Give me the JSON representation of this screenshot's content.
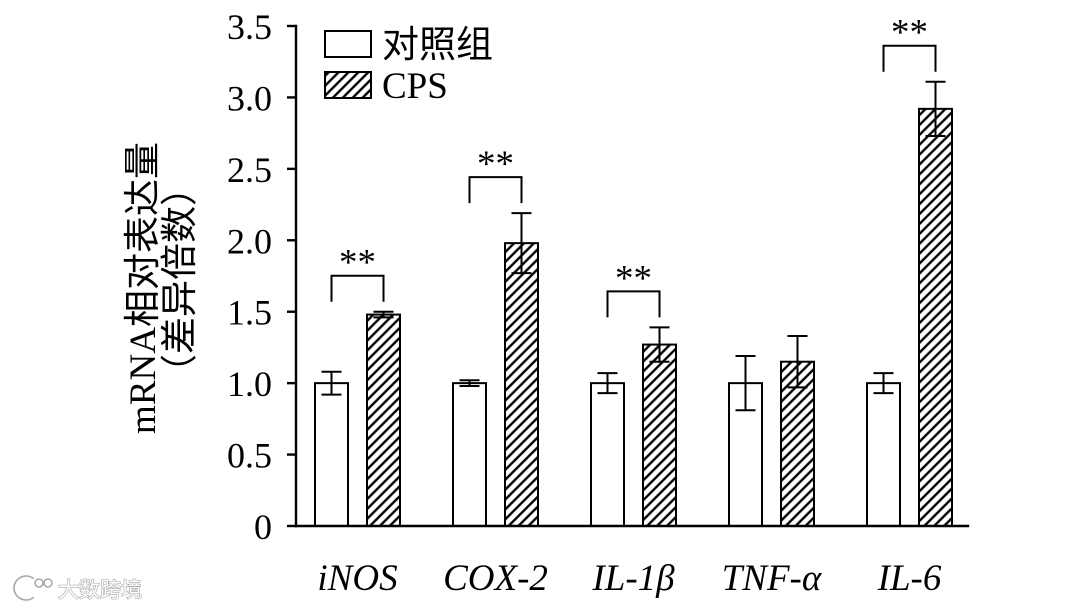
{
  "chart_data": {
    "type": "bar",
    "categories": [
      "iNOS",
      "COX-2",
      "IL-1β",
      "TNF-α",
      "IL-6"
    ],
    "series": [
      {
        "name": "对照组",
        "values": [
          1.0,
          1.0,
          1.0,
          1.0,
          1.0
        ],
        "error": [
          0.08,
          0.02,
          0.07,
          0.19,
          0.07
        ],
        "fill": "#ffffff"
      },
      {
        "name": "CPS",
        "values": [
          1.48,
          1.98,
          1.27,
          1.15,
          2.92
        ],
        "error": [
          0.02,
          0.21,
          0.12,
          0.18,
          0.19
        ],
        "fill": "#ffffff",
        "hatch": "#000000"
      }
    ],
    "significance": [
      "**",
      "**",
      "**",
      "",
      "**"
    ],
    "ylabel_lines": [
      "mRNA相对表达量",
      "（差异倍数）"
    ],
    "ylim": [
      0,
      3.5
    ],
    "yticks": [
      0,
      0.5,
      1.0,
      1.5,
      2.0,
      2.5,
      3.0,
      3.5
    ],
    "ytick_labels": [
      "0",
      "0.5",
      "1.0",
      "1.5",
      "2.0",
      "2.5",
      "3.0",
      "3.5"
    ],
    "grid": false,
    "legend_position": "top-left",
    "colors": {
      "axis": "#000000",
      "bar_edge": "#000000",
      "background": "#ffffff"
    }
  },
  "watermark": {
    "text": "大数跨境",
    "icon": "logo-icon"
  }
}
